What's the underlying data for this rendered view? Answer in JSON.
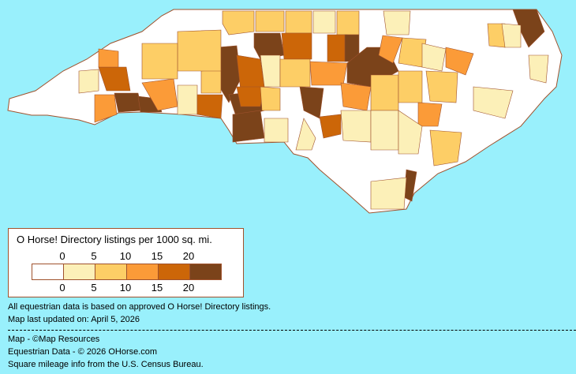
{
  "legend": {
    "title": "O Horse! Directory listings per 1000 sq. mi.",
    "ticks": [
      "0",
      "5",
      "10",
      "15",
      "20"
    ],
    "colors": [
      "#ffffff",
      "#fcf0b8",
      "#fdce66",
      "#fb9b38",
      "#cc6608",
      "#7b431a"
    ]
  },
  "map": {
    "background": "#99f0fc",
    "border": "#a0522d"
  },
  "notes": {
    "line1": "All equestrian data is based on approved O Horse! Directory listings.",
    "line2": "Map last updated on: April 5, 2026"
  },
  "credits": {
    "map": "Map - ©Map Resources",
    "data": "Equestrian Data - © 2026 OHorse.com",
    "census": "Square mileage info from the U.S. Census Bureau."
  }
}
